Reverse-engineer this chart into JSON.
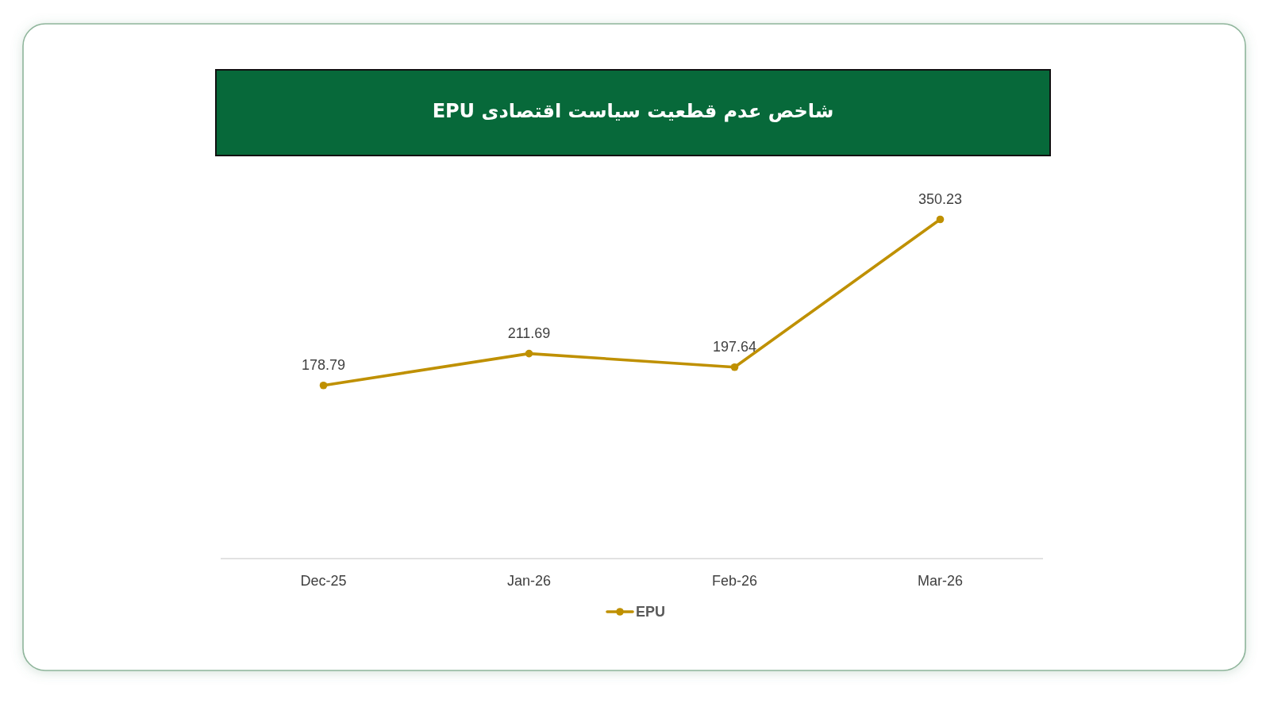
{
  "chart_data": {
    "type": "line",
    "title": "شاخص عدم قطعیت سیاست اقتصادی EPU",
    "categories": [
      "Dec-25",
      "Jan-26",
      "Feb-26",
      "Mar-26"
    ],
    "series": [
      {
        "name": "EPU",
        "color": "#bf9000",
        "values": [
          178.79,
          211.69,
          197.64,
          350.23
        ]
      }
    ],
    "tick_labels": "x",
    "data_labels": true,
    "legend": "bottom",
    "marker": "circle",
    "line_style": "solid"
  }
}
